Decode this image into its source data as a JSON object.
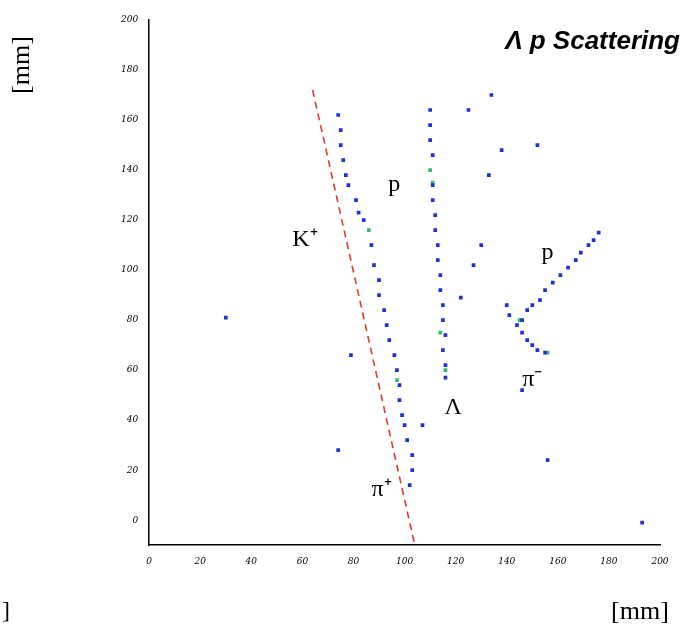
{
  "chart_data": {
    "type": "scatter",
    "title": "Λ p Scattering",
    "x_label": "[mm]",
    "y_label": "[mm]",
    "annotations": [
      "p",
      "K⁺",
      "p",
      "π⁻",
      "Λ",
      "π⁺",
      "]"
    ],
    "xlim": [
      0,
      200
    ],
    "ylim": [
      -10,
      200
    ],
    "xticks": [
      0,
      20,
      40,
      60,
      80,
      100,
      120,
      140,
      160,
      180,
      200
    ],
    "yticks": [
      0,
      20,
      40,
      60,
      80,
      100,
      120,
      140,
      160,
      180,
      200
    ],
    "grid": false,
    "series": [
      {
        "color": "#1d2fd8",
        "marker": "square",
        "x": [
          102,
          103,
          103,
          101,
          100,
          99,
          98,
          98,
          97,
          96,
          94,
          93,
          92,
          90,
          90,
          88,
          87,
          84,
          82,
          81,
          78,
          77,
          76,
          75,
          75,
          74,
          116,
          116,
          115,
          116,
          115,
          115,
          114,
          114,
          113,
          113,
          112,
          112,
          111,
          111,
          111,
          110,
          110,
          110,
          144,
          146,
          148,
          150,
          153,
          155,
          158,
          161,
          164,
          167,
          169,
          172,
          174,
          176,
          146,
          148,
          150,
          152,
          155,
          141,
          140,
          30,
          146,
          156,
          74,
          193,
          134,
          125,
          152,
          133,
          130,
          127,
          122,
          138,
          107,
          79
        ],
        "y": [
          14,
          20,
          26,
          32,
          38,
          42,
          48,
          54,
          60,
          66,
          72,
          78,
          84,
          90,
          96,
          102,
          110,
          120,
          123,
          128,
          134,
          138,
          144,
          150,
          156,
          162,
          57,
          62,
          68,
          74,
          80,
          86,
          92,
          98,
          104,
          110,
          116,
          122,
          128,
          134,
          146,
          152,
          158,
          164,
          78,
          80,
          84,
          86,
          88,
          92,
          95,
          98,
          101,
          104,
          107,
          110,
          112,
          115,
          75,
          72,
          70,
          68,
          67,
          82,
          86,
          81,
          52,
          24,
          28,
          -1,
          170,
          164,
          150,
          138,
          110,
          102,
          89,
          148,
          38,
          66
        ]
      },
      {
        "color": "#2fbf6a",
        "marker": "square",
        "x": [
          110,
          111,
          114,
          116,
          145,
          156,
          97,
          86
        ],
        "y": [
          140,
          135,
          75,
          60,
          80,
          67,
          56,
          116
        ]
      },
      {
        "type": "line",
        "color": "#e8382a",
        "line_style": "dashed",
        "x": [
          64,
          104
        ],
        "y": [
          172,
          -10
        ]
      }
    ]
  }
}
